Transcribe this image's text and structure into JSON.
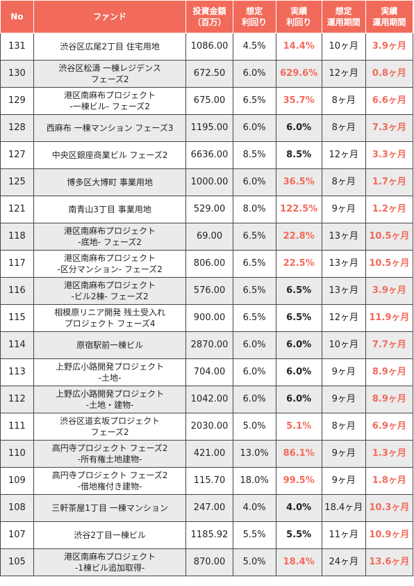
{
  "headers": {
    "no": "No",
    "fund": "ファンド",
    "amount": [
      "投資金額",
      "（百万）"
    ],
    "expected_yield": [
      "想定",
      "利回り"
    ],
    "actual_yield": [
      "実績",
      "利回り"
    ],
    "expected_period": [
      "想定",
      "運用期間"
    ],
    "actual_period": [
      "実績",
      "運用期間"
    ]
  },
  "colors": {
    "header_bg": "#f26a5a",
    "highlight": "#f26a5a",
    "alt_row": "#ebebeb"
  },
  "rows": [
    {
      "no": "131",
      "fund": [
        "渋谷区広尾2丁目 住宅用地"
      ],
      "amount": "1086.00",
      "expected_yield": "4.5%",
      "actual_yield": "14.4%",
      "actual_yield_hl": true,
      "expected_period": "10ヶ月",
      "actual_period": "3.9ヶ月"
    },
    {
      "no": "130",
      "fund": [
        "渋谷区松濤 一棟レジデンス",
        "フェーズ2"
      ],
      "amount": "672.50",
      "expected_yield": "6.0%",
      "actual_yield": "629.6%",
      "actual_yield_hl": true,
      "expected_period": "12ヶ月",
      "actual_period": "0.8ヶ月"
    },
    {
      "no": "129",
      "fund": [
        "港区南麻布プロジェクト",
        "-一棟ビル- フェーズ2"
      ],
      "amount": "675.00",
      "expected_yield": "6.5%",
      "actual_yield": "35.7%",
      "actual_yield_hl": true,
      "expected_period": "8ヶ月",
      "actual_period": "6.6ヶ月"
    },
    {
      "no": "128",
      "fund": [
        "西麻布 一棟マンション フェーズ3"
      ],
      "amount": "1195.00",
      "expected_yield": "6.0%",
      "actual_yield": "6.0%",
      "actual_yield_hl": false,
      "expected_period": "8ヶ月",
      "actual_period": "7.3ヶ月"
    },
    {
      "no": "127",
      "fund": [
        "中央区銀座商業ビル フェーズ2"
      ],
      "amount": "6636.00",
      "expected_yield": "8.5%",
      "actual_yield": "8.5%",
      "actual_yield_hl": false,
      "expected_period": "12ヶ月",
      "actual_period": "3.3ヶ月"
    },
    {
      "no": "125",
      "fund": [
        "博多区大博町 事業用地"
      ],
      "amount": "1000.00",
      "expected_yield": "6.0%",
      "actual_yield": "36.5%",
      "actual_yield_hl": true,
      "expected_period": "8ヶ月",
      "actual_period": "1.7ヶ月"
    },
    {
      "no": "121",
      "fund": [
        "南青山3丁目 事業用地"
      ],
      "amount": "529.00",
      "expected_yield": "8.0%",
      "actual_yield": "122.5%",
      "actual_yield_hl": true,
      "expected_period": "9ヶ月",
      "actual_period": "1.2ヶ月"
    },
    {
      "no": "118",
      "fund": [
        "港区南麻布プロジェクト",
        "-底地- フェーズ2"
      ],
      "amount": "69.00",
      "expected_yield": "6.5%",
      "actual_yield": "22.8%",
      "actual_yield_hl": true,
      "expected_period": "13ヶ月",
      "actual_period": "10.5ヶ月"
    },
    {
      "no": "117",
      "fund": [
        "港区南麻布プロジェクト",
        "-区分マンション- フェーズ2"
      ],
      "amount": "806.00",
      "expected_yield": "6.5%",
      "actual_yield": "22.5%",
      "actual_yield_hl": true,
      "expected_period": "13ヶ月",
      "actual_period": "10.5ヶ月"
    },
    {
      "no": "116",
      "fund": [
        "港区南麻布プロジェクト",
        "-ビル2棟- フェーズ2"
      ],
      "amount": "576.00",
      "expected_yield": "6.5%",
      "actual_yield": "6.5%",
      "actual_yield_hl": false,
      "expected_period": "13ヶ月",
      "actual_period": "3.9ヶ月"
    },
    {
      "no": "115",
      "fund": [
        "相模原リニア開発 残土受入れ",
        "プロジェクト フェーズ4"
      ],
      "amount": "900.00",
      "expected_yield": "6.5%",
      "actual_yield": "6.5%",
      "actual_yield_hl": false,
      "expected_period": "12ヶ月",
      "actual_period": "11.9ヶ月"
    },
    {
      "no": "114",
      "fund": [
        "原宿駅前一棟ビル"
      ],
      "amount": "2870.00",
      "expected_yield": "6.0%",
      "actual_yield": "6.0%",
      "actual_yield_hl": false,
      "expected_period": "10ヶ月",
      "actual_period": "7.7ヶ月"
    },
    {
      "no": "113",
      "fund": [
        "上野広小路開発プロジェクト",
        "-土地-"
      ],
      "amount": "704.00",
      "expected_yield": "6.0%",
      "actual_yield": "6.0%",
      "actual_yield_hl": false,
      "expected_period": "9ヶ月",
      "actual_period": "8.9ヶ月"
    },
    {
      "no": "112",
      "fund": [
        "上野広小路開発プロジェクト",
        "-土地・建物-"
      ],
      "amount": "1042.00",
      "expected_yield": "6.0%",
      "actual_yield": "6.0%",
      "actual_yield_hl": false,
      "expected_period": "9ヶ月",
      "actual_period": "8.9ヶ月"
    },
    {
      "no": "111",
      "fund": [
        "渋谷区道玄坂プロジェクト",
        "フェーズ2"
      ],
      "amount": "2030.00",
      "expected_yield": "5.0%",
      "actual_yield": "5.1%",
      "actual_yield_hl": true,
      "expected_period": "8ヶ月",
      "actual_period": "6.9ヶ月"
    },
    {
      "no": "110",
      "fund": [
        "高円寺プロジェクト フェーズ2",
        "-所有権土地建物-"
      ],
      "amount": "421.00",
      "expected_yield": "13.0%",
      "actual_yield": "86.1%",
      "actual_yield_hl": true,
      "expected_period": "9ヶ月",
      "actual_period": "1.3ヶ月"
    },
    {
      "no": "109",
      "fund": [
        "高円寺プロジェクト フェーズ2",
        "-借地権付き建物-"
      ],
      "amount": "115.70",
      "expected_yield": "18.0%",
      "actual_yield": "99.5%",
      "actual_yield_hl": true,
      "expected_period": "9ヶ月",
      "actual_period": "1.8ヶ月"
    },
    {
      "no": "108",
      "fund": [
        "三軒茶屋1丁目 一棟マンション"
      ],
      "amount": "247.00",
      "expected_yield": "4.0%",
      "actual_yield": "4.0%",
      "actual_yield_hl": false,
      "expected_period": "18.4ヶ月",
      "actual_period": "10.3ヶ月"
    },
    {
      "no": "107",
      "fund": [
        "渋谷2丁目一棟ビル"
      ],
      "amount": "1185.92",
      "expected_yield": "5.5%",
      "actual_yield": "5.5%",
      "actual_yield_hl": false,
      "expected_period": "11ヶ月",
      "actual_period": "10.9ヶ月"
    },
    {
      "no": "105",
      "fund": [
        "港区南麻布プロジェクト",
        "-1棟ビル追加取得-"
      ],
      "amount": "870.00",
      "expected_yield": "5.0%",
      "actual_yield": "18.4%",
      "actual_yield_hl": true,
      "expected_period": "24ヶ月",
      "actual_period": "13.6ヶ月"
    }
  ]
}
